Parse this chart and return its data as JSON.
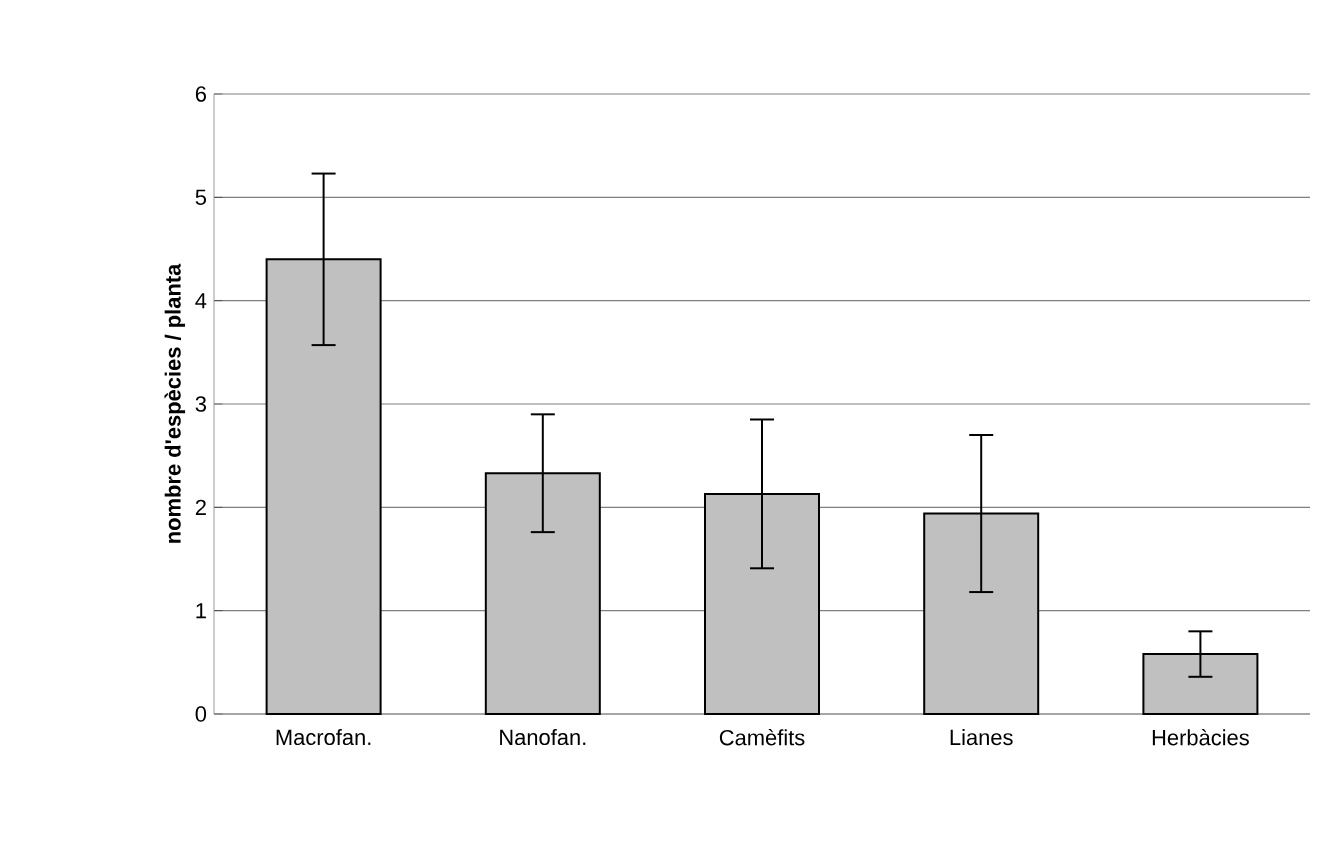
{
  "chart_data": {
    "type": "bar",
    "ylabel": "nombre d'espècies / planta",
    "categories": [
      "Macrofan.",
      "Nanofan.",
      "Camèfits",
      "Lianes",
      "Herbàcies"
    ],
    "values": [
      4.4,
      2.33,
      2.13,
      1.94,
      0.58
    ],
    "errors": [
      0.83,
      0.57,
      0.72,
      0.76,
      0.22
    ],
    "color": "#c0c0c0",
    "ylim": [
      0,
      6
    ],
    "yticks": [
      0,
      1,
      2,
      3,
      4,
      5,
      6
    ],
    "grid": "y"
  }
}
